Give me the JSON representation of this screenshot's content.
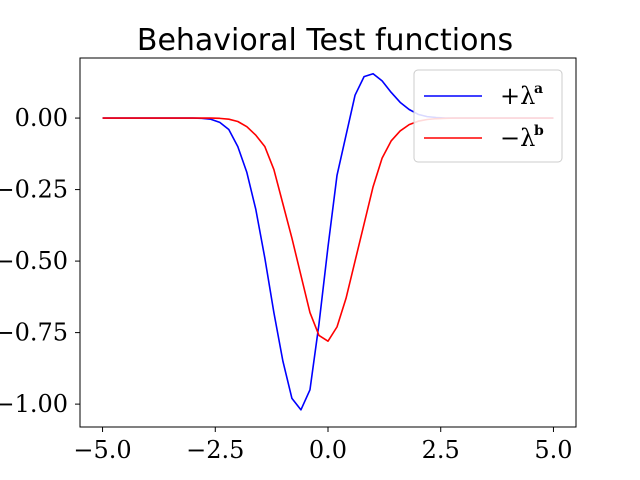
{
  "chart_data": {
    "type": "line",
    "title": "Behavioral Test functions",
    "xlabel": "",
    "ylabel": "",
    "xlim": [
      -5.5,
      5.5
    ],
    "ylim": [
      -1.08,
      0.21
    ],
    "x_ticks": [
      -5.0,
      -2.5,
      0.0,
      2.5,
      5.0
    ],
    "x_tick_labels": [
      "−5.0",
      "−2.5",
      "0.0",
      "2.5",
      "5.0"
    ],
    "y_ticks": [
      0.0,
      -0.25,
      -0.5,
      -0.75,
      -1.0
    ],
    "y_tick_labels": [
      "0.00",
      "−0.25",
      "−0.50",
      "−0.75",
      "−1.00"
    ],
    "grid": false,
    "legend_position": "top-right",
    "series": [
      {
        "name": "+λ",
        "name_superscript": "a",
        "color": "#0000ff",
        "x": [
          -5.0,
          -4.8,
          -4.6,
          -4.4,
          -4.2,
          -4.0,
          -3.8,
          -3.6,
          -3.4,
          -3.2,
          -3.0,
          -2.8,
          -2.6,
          -2.4,
          -2.2,
          -2.0,
          -1.8,
          -1.6,
          -1.4,
          -1.2,
          -1.0,
          -0.8,
          -0.6,
          -0.4,
          -0.2,
          0.0,
          0.2,
          0.4,
          0.6,
          0.8,
          1.0,
          1.2,
          1.4,
          1.6,
          1.8,
          2.0,
          2.2,
          2.4,
          2.6,
          2.8,
          3.0,
          3.2,
          3.4,
          3.6,
          3.8,
          4.0,
          4.2,
          4.4,
          4.6,
          4.8,
          5.0
        ],
        "y": [
          0.0,
          0.0,
          0.0,
          0.0,
          0.0,
          0.0,
          0.0,
          0.0,
          0.0,
          0.0,
          0.0,
          -0.001,
          -0.004,
          -0.015,
          -0.04,
          -0.1,
          -0.19,
          -0.32,
          -0.49,
          -0.68,
          -0.85,
          -0.98,
          -1.02,
          -0.95,
          -0.72,
          -0.45,
          -0.2,
          -0.06,
          0.08,
          0.145,
          0.155,
          0.13,
          0.09,
          0.055,
          0.03,
          0.013,
          0.005,
          0.002,
          0.0,
          0.0,
          0.0,
          0.0,
          0.0,
          0.0,
          0.0,
          0.0,
          0.0,
          0.0,
          0.0,
          0.0,
          0.0
        ]
      },
      {
        "name": "−λ",
        "name_superscript": "b",
        "color": "#ff0000",
        "x": [
          -5.0,
          -4.8,
          -4.6,
          -4.4,
          -4.2,
          -4.0,
          -3.8,
          -3.6,
          -3.4,
          -3.2,
          -3.0,
          -2.8,
          -2.6,
          -2.4,
          -2.2,
          -2.0,
          -1.8,
          -1.6,
          -1.4,
          -1.2,
          -1.0,
          -0.8,
          -0.6,
          -0.4,
          -0.2,
          0.0,
          0.2,
          0.4,
          0.6,
          0.8,
          1.0,
          1.2,
          1.4,
          1.6,
          1.8,
          2.0,
          2.2,
          2.4,
          2.6,
          2.8,
          3.0,
          3.2,
          3.4,
          3.6,
          3.8,
          4.0,
          4.2,
          4.4,
          4.6,
          4.8,
          5.0
        ],
        "y": [
          0.0,
          0.0,
          0.0,
          0.0,
          0.0,
          0.0,
          0.0,
          0.0,
          0.0,
          0.0,
          0.0,
          0.0,
          0.0,
          -0.001,
          -0.004,
          -0.012,
          -0.03,
          -0.06,
          -0.1,
          -0.18,
          -0.3,
          -0.42,
          -0.55,
          -0.68,
          -0.76,
          -0.78,
          -0.73,
          -0.63,
          -0.5,
          -0.37,
          -0.24,
          -0.14,
          -0.08,
          -0.045,
          -0.023,
          -0.011,
          -0.005,
          -0.002,
          -0.001,
          0.0,
          0.0,
          0.0,
          0.0,
          0.0,
          0.0,
          0.0,
          0.0,
          0.0,
          0.0,
          0.0,
          0.0
        ]
      }
    ]
  }
}
